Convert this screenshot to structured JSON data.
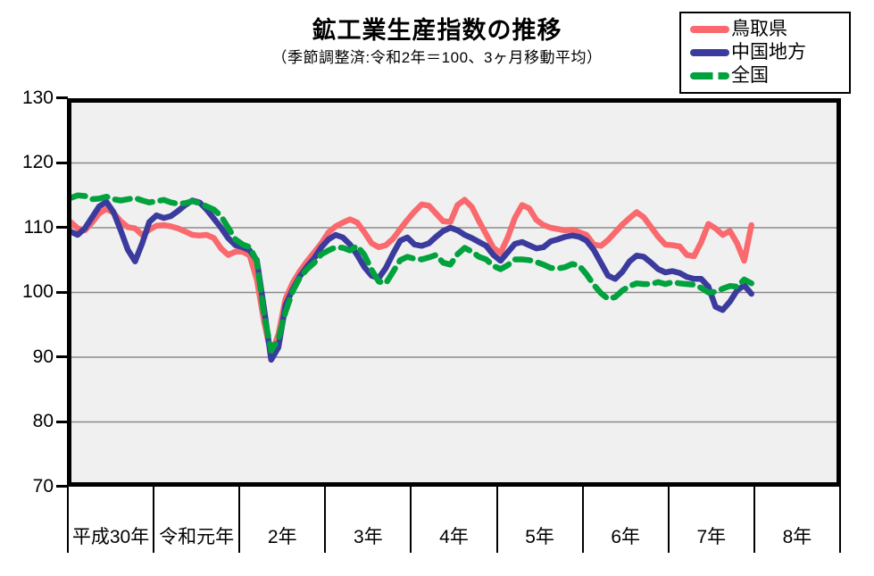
{
  "title": "鉱工業生産指数の推移",
  "subtitle": "（季節調整済:令和2年＝100、3ヶ月移動平均）",
  "legend": {
    "items": [
      {
        "label": "鳥取県",
        "color": "#f9696d",
        "style": "solid"
      },
      {
        "label": "中国地方",
        "color": "#3b3b9e",
        "style": "solid"
      },
      {
        "label": "全国",
        "color": "#00a23e",
        "style": "dashed"
      }
    ]
  },
  "chart_data": {
    "type": "line",
    "title": "鉱工業生産指数の推移",
    "subtitle": "（季節調整済:令和2年＝100、3ヶ月移動平均）",
    "plot_bg": "#f0f0f0",
    "grid": true,
    "gridline_color": "#8a8a8a",
    "frame_color": "#000000",
    "legend_position": "top-right",
    "y_axis": {
      "min": 70,
      "max": 130,
      "tick_step": 10,
      "ticks": [
        70,
        80,
        90,
        100,
        110,
        120,
        130
      ]
    },
    "x_axis": {
      "year_labels": [
        "平成30年",
        "令和元年",
        "2年",
        "3年",
        "4年",
        "5年",
        "6年",
        "7年",
        "8年"
      ],
      "months_per_year": 12
    },
    "x": [
      "2018-01",
      "2018-02",
      "2018-03",
      "2018-04",
      "2018-05",
      "2018-06",
      "2018-07",
      "2018-08",
      "2018-09",
      "2018-10",
      "2018-11",
      "2018-12",
      "2019-01",
      "2019-02",
      "2019-03",
      "2019-04",
      "2019-05",
      "2019-06",
      "2019-07",
      "2019-08",
      "2019-09",
      "2019-10",
      "2019-11",
      "2019-12",
      "2020-01",
      "2020-02",
      "2020-03",
      "2020-04",
      "2020-05",
      "2020-06",
      "2020-07",
      "2020-08",
      "2020-09",
      "2020-10",
      "2020-11",
      "2020-12",
      "2021-01",
      "2021-02",
      "2021-03",
      "2021-04",
      "2021-05",
      "2021-06",
      "2021-07",
      "2021-08",
      "2021-09",
      "2021-10",
      "2021-11",
      "2021-12",
      "2022-01",
      "2022-02",
      "2022-03",
      "2022-04",
      "2022-05",
      "2022-06",
      "2022-07",
      "2022-08",
      "2022-09",
      "2022-10",
      "2022-11",
      "2022-12",
      "2023-01",
      "2023-02",
      "2023-03",
      "2023-04",
      "2023-05",
      "2023-06",
      "2023-07",
      "2023-08",
      "2023-09",
      "2023-10",
      "2023-11",
      "2023-12",
      "2024-01",
      "2024-02",
      "2024-03",
      "2024-04",
      "2024-05",
      "2024-06",
      "2024-07",
      "2024-08",
      "2024-09",
      "2024-10",
      "2024-11",
      "2024-12",
      "2025-01",
      "2025-02",
      "2025-03",
      "2025-04",
      "2025-05",
      "2025-06",
      "2025-07",
      "2025-08",
      "2025-09",
      "2025-10",
      "2025-11",
      "2025-12"
    ],
    "series": [
      {
        "name": "鳥取県",
        "color": "#f9696d",
        "dash": false,
        "values": [
          110.9,
          109.9,
          109.6,
          110.8,
          112.2,
          112.9,
          112.3,
          111.0,
          110.1,
          109.9,
          108.9,
          109.7,
          110.3,
          110.4,
          110.2,
          109.9,
          109.4,
          108.9,
          108.8,
          108.9,
          108.4,
          106.8,
          105.8,
          106.3,
          106.3,
          105.7,
          102.0,
          95.5,
          90.4,
          93.5,
          99.0,
          101.5,
          103.3,
          104.8,
          106.2,
          107.6,
          109.3,
          110.2,
          110.8,
          111.3,
          110.8,
          109.3,
          107.6,
          107.0,
          107.3,
          108.3,
          109.8,
          111.2,
          112.5,
          113.6,
          113.4,
          112.2,
          111.0,
          110.9,
          113.5,
          114.3,
          113.2,
          111.0,
          109.0,
          106.9,
          106.1,
          108.5,
          111.5,
          113.5,
          113.0,
          111.2,
          110.4,
          110.0,
          109.8,
          109.6,
          109.7,
          109.3,
          108.9,
          107.4,
          107.2,
          108.1,
          109.3,
          110.5,
          111.5,
          112.4,
          111.6,
          110.1,
          108.6,
          107.4,
          107.3,
          107.1,
          105.8,
          105.6,
          107.8,
          110.6,
          109.9,
          108.9,
          109.5,
          107.6,
          104.9,
          110.4
        ]
      },
      {
        "name": "中国地方",
        "color": "#3b3b9e",
        "dash": false,
        "values": [
          109.4,
          108.9,
          109.9,
          111.6,
          113.3,
          114.0,
          112.4,
          109.6,
          106.6,
          104.8,
          107.6,
          110.9,
          111.9,
          111.5,
          111.8,
          112.6,
          113.5,
          114.2,
          113.9,
          112.8,
          111.4,
          110.0,
          108.4,
          107.3,
          107.0,
          106.5,
          105.0,
          97.5,
          89.6,
          91.5,
          98.0,
          100.5,
          102.5,
          104.0,
          105.3,
          107.0,
          108.2,
          108.9,
          108.5,
          107.4,
          105.8,
          103.9,
          102.6,
          102.2,
          103.8,
          106.0,
          108.0,
          108.5,
          107.4,
          107.2,
          107.6,
          108.6,
          109.5,
          110.0,
          109.6,
          108.9,
          108.4,
          107.8,
          107.2,
          105.8,
          104.9,
          106.2,
          107.5,
          107.8,
          107.3,
          106.8,
          107.0,
          107.9,
          108.2,
          108.6,
          108.8,
          108.6,
          108.0,
          106.6,
          104.6,
          102.6,
          102.1,
          103.2,
          104.8,
          105.7,
          105.5,
          104.6,
          103.6,
          103.1,
          103.3,
          103.0,
          102.4,
          102.1,
          102.1,
          100.9,
          97.8,
          97.3,
          98.6,
          100.3,
          101.1,
          99.8
        ]
      },
      {
        "name": "全国",
        "color": "#00a23e",
        "dash": true,
        "values": [
          114.6,
          115.0,
          114.9,
          114.4,
          114.5,
          114.8,
          114.4,
          114.2,
          114.4,
          114.6,
          114.2,
          113.9,
          114.1,
          114.3,
          113.9,
          113.7,
          113.8,
          114.1,
          113.8,
          113.3,
          112.8,
          111.8,
          110.0,
          108.2,
          107.4,
          107.0,
          104.8,
          96.5,
          91.0,
          92.8,
          97.0,
          100.2,
          102.3,
          103.6,
          104.6,
          105.9,
          106.5,
          107.0,
          106.9,
          106.5,
          107.2,
          105.8,
          103.5,
          101.7,
          101.4,
          103.2,
          105.0,
          105.5,
          105.2,
          105.1,
          105.4,
          105.8,
          104.6,
          104.3,
          105.9,
          106.9,
          106.3,
          105.5,
          105.1,
          104.1,
          103.6,
          104.2,
          105.1,
          105.1,
          105.0,
          104.7,
          104.3,
          103.8,
          103.7,
          103.9,
          104.4,
          104.1,
          102.8,
          101.2,
          99.9,
          99.0,
          99.3,
          100.3,
          101.0,
          101.4,
          101.3,
          101.3,
          101.6,
          101.3,
          101.6,
          101.4,
          101.3,
          101.2,
          100.7,
          100.0,
          100.1,
          100.6,
          101.0,
          100.9,
          102.0,
          101.4
        ]
      }
    ]
  }
}
